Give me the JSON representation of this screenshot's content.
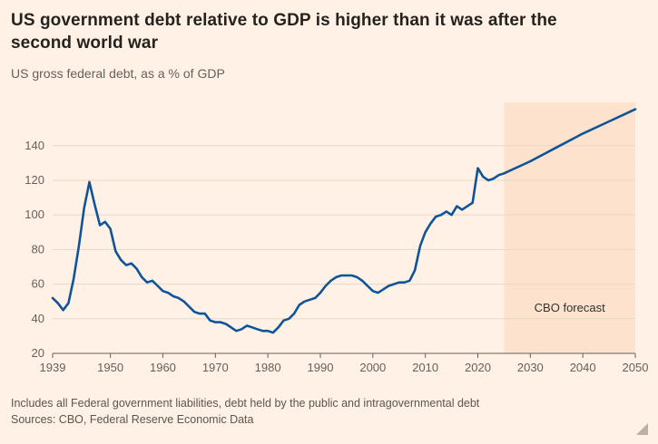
{
  "header": {
    "title": "US government debt relative to GDP is higher than it was after the second world war",
    "subtitle": "US gross federal debt, as a % of GDP"
  },
  "footer": {
    "note": "Includes all Federal government liabilities, debt held by the public and intragovernmental debt",
    "sources": "Sources: CBO, Federal Reserve Economic Data"
  },
  "chart_data": {
    "type": "line",
    "title": "US government debt relative to GDP is higher than it was after the second world war",
    "subtitle": "US gross federal debt, as a % of GDP",
    "xlabel": "",
    "ylabel": "US gross federal debt, as a % of GDP",
    "xlim": [
      1939,
      2050
    ],
    "ylim": [
      20,
      165
    ],
    "x_ticks": [
      1939,
      1950,
      1960,
      1970,
      1980,
      1990,
      2000,
      2010,
      2020,
      2030,
      2040,
      2050
    ],
    "y_ticks": [
      20,
      40,
      60,
      80,
      100,
      120,
      140
    ],
    "grid": true,
    "legend_position": "none",
    "forecast": {
      "start": 2025,
      "end": 2050,
      "label": "CBO forecast",
      "label_y": 44
    },
    "colors": {
      "line": "#0f5499",
      "band": "#fde3cd",
      "grid": "#e7d7c7",
      "axis": "#66605c",
      "background": "#fff1e5"
    },
    "series": [
      {
        "name": "US gross federal debt, % of GDP",
        "points": [
          [
            1939,
            52
          ],
          [
            1940,
            49
          ],
          [
            1941,
            45
          ],
          [
            1942,
            49
          ],
          [
            1943,
            63
          ],
          [
            1944,
            82
          ],
          [
            1945,
            104
          ],
          [
            1946,
            119
          ],
          [
            1947,
            106
          ],
          [
            1948,
            94
          ],
          [
            1949,
            96
          ],
          [
            1950,
            92
          ],
          [
            1951,
            79
          ],
          [
            1952,
            74
          ],
          [
            1953,
            71
          ],
          [
            1954,
            72
          ],
          [
            1955,
            69
          ],
          [
            1956,
            64
          ],
          [
            1957,
            61
          ],
          [
            1958,
            62
          ],
          [
            1959,
            59
          ],
          [
            1960,
            56
          ],
          [
            1961,
            55
          ],
          [
            1962,
            53
          ],
          [
            1963,
            52
          ],
          [
            1964,
            50
          ],
          [
            1965,
            47
          ],
          [
            1966,
            44
          ],
          [
            1967,
            43
          ],
          [
            1968,
            43
          ],
          [
            1969,
            39
          ],
          [
            1970,
            38
          ],
          [
            1971,
            38
          ],
          [
            1972,
            37
          ],
          [
            1973,
            35
          ],
          [
            1974,
            33
          ],
          [
            1975,
            34
          ],
          [
            1976,
            36
          ],
          [
            1977,
            35
          ],
          [
            1978,
            34
          ],
          [
            1979,
            33
          ],
          [
            1980,
            33
          ],
          [
            1981,
            32
          ],
          [
            1982,
            35
          ],
          [
            1983,
            39
          ],
          [
            1984,
            40
          ],
          [
            1985,
            43
          ],
          [
            1986,
            48
          ],
          [
            1987,
            50
          ],
          [
            1988,
            51
          ],
          [
            1989,
            52
          ],
          [
            1990,
            55
          ],
          [
            1991,
            59
          ],
          [
            1992,
            62
          ],
          [
            1993,
            64
          ],
          [
            1994,
            65
          ],
          [
            1995,
            65
          ],
          [
            1996,
            65
          ],
          [
            1997,
            64
          ],
          [
            1998,
            62
          ],
          [
            1999,
            59
          ],
          [
            2000,
            56
          ],
          [
            2001,
            55
          ],
          [
            2002,
            57
          ],
          [
            2003,
            59
          ],
          [
            2004,
            60
          ],
          [
            2005,
            61
          ],
          [
            2006,
            61
          ],
          [
            2007,
            62
          ],
          [
            2008,
            68
          ],
          [
            2009,
            82
          ],
          [
            2010,
            90
          ],
          [
            2011,
            95
          ],
          [
            2012,
            99
          ],
          [
            2013,
            100
          ],
          [
            2014,
            102
          ],
          [
            2015,
            100
          ],
          [
            2016,
            105
          ],
          [
            2017,
            103
          ],
          [
            2018,
            105
          ],
          [
            2019,
            107
          ],
          [
            2020,
            127
          ],
          [
            2021,
            122
          ],
          [
            2022,
            120
          ],
          [
            2023,
            121
          ],
          [
            2024,
            123
          ],
          [
            2025,
            124
          ],
          [
            2030,
            131
          ],
          [
            2035,
            139
          ],
          [
            2040,
            147
          ],
          [
            2045,
            154
          ],
          [
            2050,
            161
          ]
        ]
      }
    ]
  }
}
